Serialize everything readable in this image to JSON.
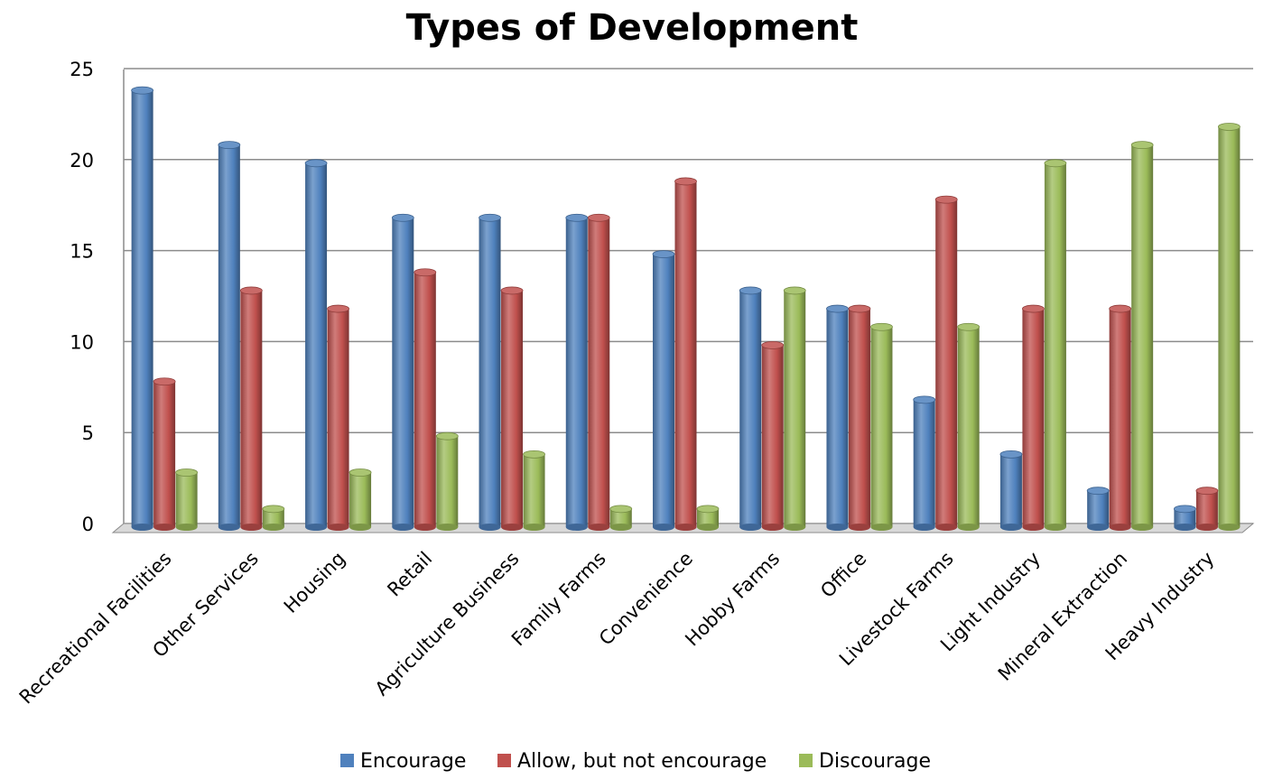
{
  "chart_data": {
    "type": "bar",
    "title": "Types of Development",
    "xlabel": "",
    "ylabel": "",
    "ylim": [
      0,
      25
    ],
    "yticks": [
      0,
      5,
      10,
      15,
      20,
      25
    ],
    "grid": true,
    "legend_position": "bottom",
    "categories": [
      "Recreational Facilities",
      "Other Services",
      "Housing",
      "Retail",
      "Agriculture Business",
      "Family Farms",
      "Convenience",
      "Hobby Farms",
      "Office",
      "Livestock Farms",
      "Light Industry",
      "Mineral Extraction",
      "Heavy Industry"
    ],
    "series": [
      {
        "name": "Encourage",
        "color": "#4F81BD",
        "values": [
          24,
          21,
          20,
          17,
          17,
          17,
          15,
          13,
          12,
          7,
          4,
          2,
          1
        ]
      },
      {
        "name": "Allow, but not encourage",
        "color": "#C0504D",
        "values": [
          8,
          13,
          12,
          14,
          13,
          17,
          19,
          10,
          12,
          18,
          12,
          12,
          2
        ]
      },
      {
        "name": "Discourage",
        "color": "#9BBB59",
        "values": [
          3,
          1,
          3,
          5,
          4,
          1,
          1,
          13,
          11,
          11,
          20,
          21,
          22
        ]
      }
    ]
  }
}
